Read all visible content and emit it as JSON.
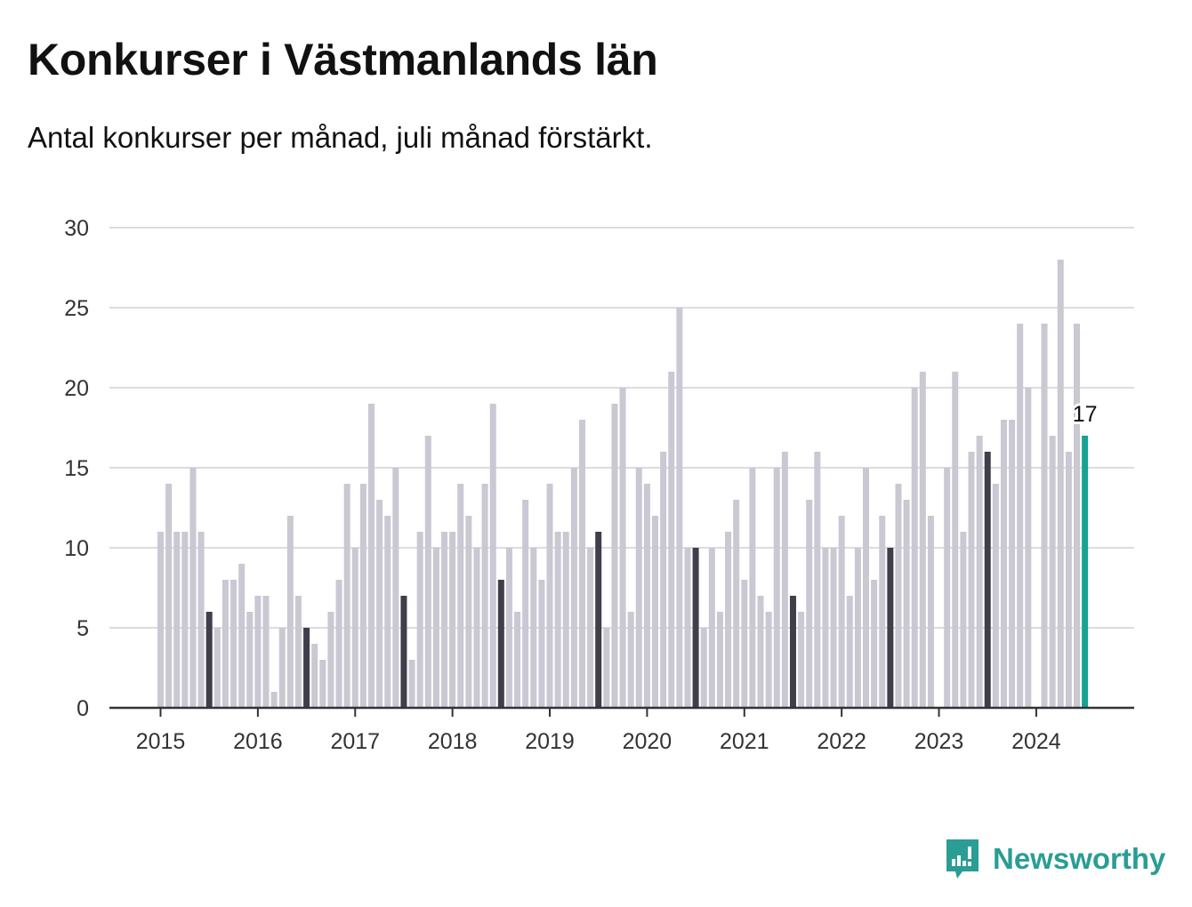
{
  "title": "Konkurser i Västmanlands län",
  "subtitle": "Antal konkurser per månad, juli månad förstärkt.",
  "brand": {
    "name": "Newsworthy",
    "icon": "newsworthy-logo-icon"
  },
  "colors": {
    "bar": "#c9c8d3",
    "highlight_july": "#3f3e4a",
    "latest": "#16a394",
    "grid": "#dcdce0",
    "axis": "#333333"
  },
  "chart_data": {
    "type": "bar",
    "title": "Konkurser i Västmanlands län",
    "xlabel": "",
    "ylabel": "",
    "ylim": [
      0,
      30
    ],
    "yticks": [
      0,
      5,
      10,
      15,
      20,
      25,
      30
    ],
    "xticks": [
      "2015",
      "2016",
      "2017",
      "2018",
      "2019",
      "2020",
      "2021",
      "2022",
      "2023",
      "2024"
    ],
    "grid": true,
    "start_month": "2015-01",
    "highlight_month": 7,
    "latest_label": "17",
    "values": [
      11,
      14,
      11,
      11,
      15,
      11,
      6,
      5,
      8,
      8,
      9,
      6,
      7,
      7,
      1,
      5,
      12,
      7,
      5,
      4,
      3,
      6,
      8,
      14,
      10,
      14,
      19,
      13,
      12,
      15,
      7,
      3,
      11,
      17,
      10,
      11,
      11,
      14,
      12,
      10,
      14,
      19,
      8,
      10,
      6,
      13,
      10,
      8,
      14,
      11,
      11,
      15,
      18,
      10,
      11,
      5,
      19,
      20,
      6,
      15,
      14,
      12,
      16,
      21,
      25,
      10,
      10,
      5,
      10,
      6,
      11,
      13,
      8,
      15,
      7,
      6,
      15,
      16,
      7,
      6,
      13,
      16,
      10,
      10,
      12,
      7,
      10,
      15,
      8,
      12,
      10,
      14,
      13,
      20,
      21,
      12,
      0,
      15,
      21,
      11,
      16,
      17,
      16,
      14,
      18,
      18,
      24,
      20,
      0,
      24,
      17,
      28,
      16,
      24,
      17
    ]
  }
}
